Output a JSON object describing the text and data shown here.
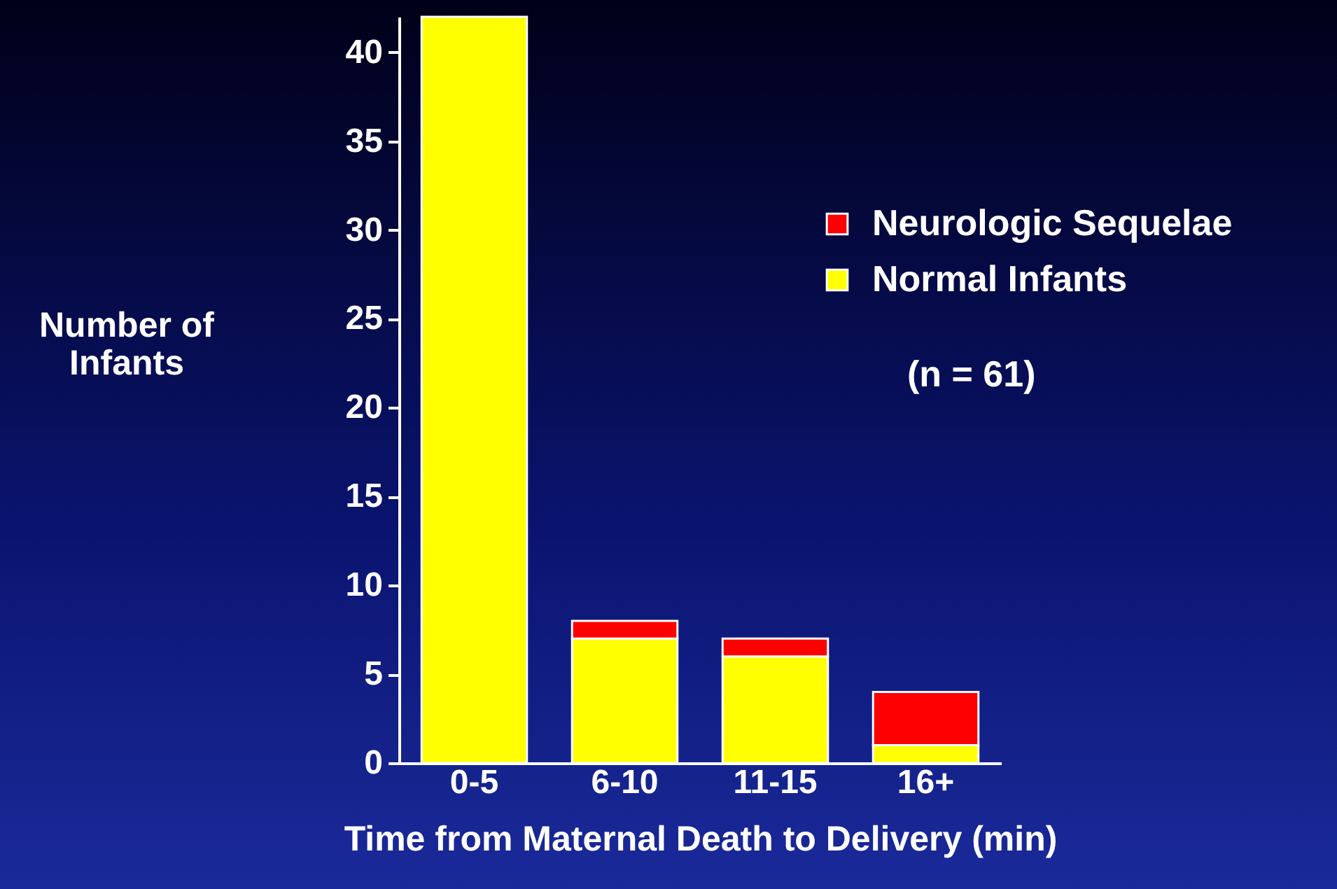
{
  "chart_data": {
    "type": "bar",
    "stacked": true,
    "xlabel": "Time from Maternal Death to Delivery (min)",
    "ylabel": "Number of Infants",
    "categories": [
      "0-5",
      "6-10",
      "11-15",
      "16+"
    ],
    "series": [
      {
        "name": "Normal Infants",
        "color": "#ffff00",
        "values": [
          42,
          7,
          6,
          1
        ]
      },
      {
        "name": "Neurologic Sequelae",
        "color": "#ff0000",
        "values": [
          0,
          1,
          1,
          3
        ]
      }
    ],
    "ylim": [
      0,
      42
    ],
    "yticks": [
      0,
      5,
      10,
      15,
      20,
      25,
      30,
      35,
      40
    ],
    "grid": false,
    "legend": "right",
    "annotations": [
      "(n = 61)"
    ]
  }
}
